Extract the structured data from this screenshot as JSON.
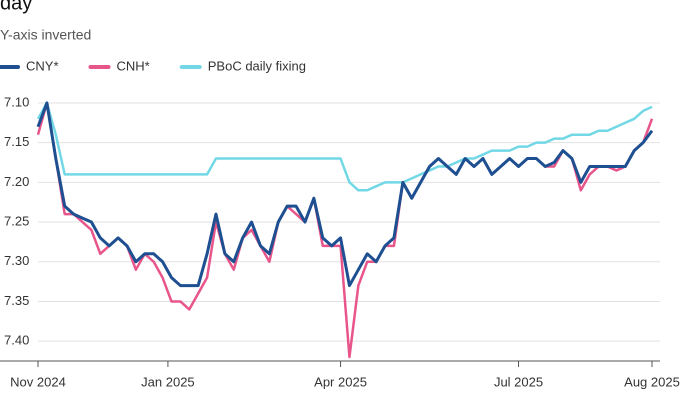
{
  "chart_data": {
    "type": "line",
    "title": "day’",
    "subtitle": "Y-axis inverted",
    "y_inverted": true,
    "grid": true,
    "legend": "top-left",
    "xlim": [
      0,
      69
    ],
    "xticks": [
      {
        "value": 0,
        "label": "Nov 2024"
      },
      {
        "value": 14.6,
        "label": "Jan 2025"
      },
      {
        "value": 34,
        "label": "Apr 2025"
      },
      {
        "value": 54,
        "label": "Jul 2025"
      },
      {
        "value": 69,
        "label": "Aug 2025"
      }
    ],
    "ylim": [
      7.09,
      7.425
    ],
    "yticks": [
      {
        "value": 7.1,
        "label": "7.10"
      },
      7.15,
      {
        "value": 7.2,
        "label": "7.20"
      },
      7.25,
      {
        "value": 7.3,
        "label": "7.30"
      },
      7.35,
      {
        "value": 7.4,
        "label": "7.40"
      }
    ],
    "series": [
      {
        "name": "CNY*",
        "color": "#1d4f91",
        "values": [
          7.13,
          7.1,
          7.17,
          7.23,
          7.24,
          7.245,
          7.25,
          7.27,
          7.28,
          7.27,
          7.28,
          7.3,
          7.29,
          7.29,
          7.3,
          7.32,
          7.33,
          7.33,
          7.33,
          7.29,
          7.24,
          7.29,
          7.3,
          7.27,
          7.25,
          7.28,
          7.29,
          7.25,
          7.23,
          7.23,
          7.25,
          7.22,
          7.27,
          7.28,
          7.27,
          7.33,
          7.31,
          7.29,
          7.3,
          7.28,
          7.27,
          7.2,
          7.22,
          7.2,
          7.18,
          7.17,
          7.18,
          7.19,
          7.17,
          7.18,
          7.17,
          7.19,
          7.18,
          7.17,
          7.18,
          7.17,
          7.17,
          7.18,
          7.175,
          7.16,
          7.17,
          7.2,
          7.18,
          7.18,
          7.18,
          7.18,
          7.18,
          7.16,
          7.15,
          7.135
        ]
      },
      {
        "name": "CNH*",
        "color": "#e8558a",
        "values": [
          7.14,
          7.1,
          7.17,
          7.24,
          7.24,
          7.25,
          7.26,
          7.29,
          7.28,
          7.27,
          7.28,
          7.31,
          7.29,
          7.3,
          7.32,
          7.35,
          7.35,
          7.36,
          7.34,
          7.32,
          7.25,
          7.29,
          7.31,
          7.27,
          7.26,
          7.28,
          7.3,
          7.25,
          7.23,
          7.24,
          7.25,
          7.22,
          7.28,
          7.28,
          7.28,
          7.42,
          7.33,
          7.3,
          7.3,
          7.28,
          7.28,
          7.2,
          7.22,
          7.2,
          7.18,
          7.17,
          7.18,
          7.19,
          7.17,
          7.18,
          7.17,
          7.19,
          7.18,
          7.17,
          7.18,
          7.17,
          7.17,
          7.18,
          7.18,
          7.16,
          7.17,
          7.21,
          7.19,
          7.18,
          7.18,
          7.185,
          7.18,
          7.16,
          7.15,
          7.12
        ]
      },
      {
        "name": "PBoC daily fixing",
        "color": "#72d8e6",
        "values": [
          7.12,
          7.1,
          7.14,
          7.19,
          7.19,
          7.19,
          7.19,
          7.19,
          7.19,
          7.19,
          7.19,
          7.19,
          7.19,
          7.19,
          7.19,
          7.19,
          7.19,
          7.19,
          7.19,
          7.19,
          7.17,
          7.17,
          7.17,
          7.17,
          7.17,
          7.17,
          7.17,
          7.17,
          7.17,
          7.17,
          7.17,
          7.17,
          7.17,
          7.17,
          7.17,
          7.2,
          7.21,
          7.21,
          7.205,
          7.2,
          7.2,
          7.2,
          7.195,
          7.19,
          7.185,
          7.18,
          7.18,
          7.175,
          7.17,
          7.17,
          7.165,
          7.16,
          7.16,
          7.16,
          7.155,
          7.155,
          7.15,
          7.15,
          7.145,
          7.145,
          7.14,
          7.14,
          7.14,
          7.135,
          7.135,
          7.13,
          7.125,
          7.12,
          7.11,
          7.105
        ]
      }
    ]
  }
}
